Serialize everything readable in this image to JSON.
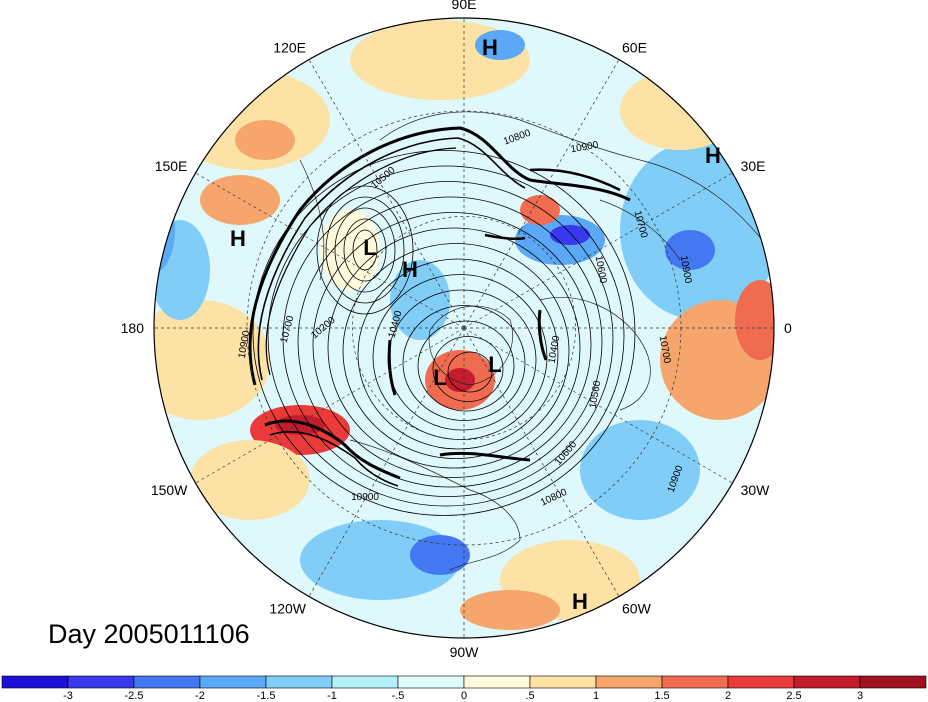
{
  "map": {
    "title": "Day 2005011106",
    "projection": "north-polar-stereographic",
    "longitude_labels": [
      {
        "key": "lon-90e",
        "text": "90E",
        "lon": 90
      },
      {
        "key": "lon-60e",
        "text": "60E",
        "lon": 60
      },
      {
        "key": "lon-30e",
        "text": "30E",
        "lon": 30
      },
      {
        "key": "lon-0",
        "text": "0",
        "lon": 0
      },
      {
        "key": "lon-30w",
        "text": "30W",
        "lon": -30
      },
      {
        "key": "lon-60w",
        "text": "60W",
        "lon": -60
      },
      {
        "key": "lon-90w",
        "text": "90W",
        "lon": -90
      },
      {
        "key": "lon-120w",
        "text": "120W",
        "lon": -120
      },
      {
        "key": "lon-150w",
        "text": "150W",
        "lon": -150
      },
      {
        "key": "lon-180",
        "text": "180",
        "lon": 180
      },
      {
        "key": "lon-150e",
        "text": "150E",
        "lon": 150
      },
      {
        "key": "lon-120e",
        "text": "120E",
        "lon": 120
      }
    ],
    "pressure_centers": [
      {
        "key": "high-north",
        "text": "H",
        "type": "high"
      },
      {
        "key": "high-northeast",
        "text": "H",
        "type": "high"
      },
      {
        "key": "high-west",
        "text": "H",
        "type": "high"
      },
      {
        "key": "high-center-west",
        "text": "H",
        "type": "high"
      },
      {
        "key": "high-southeast",
        "text": "H",
        "type": "high"
      },
      {
        "key": "low-west",
        "text": "L",
        "type": "low"
      },
      {
        "key": "low-pole-left",
        "text": "L",
        "type": "low"
      },
      {
        "key": "low-pole-right",
        "text": "L",
        "type": "low"
      }
    ],
    "contour_labels": [
      {
        "key": "c1",
        "text": "10800"
      },
      {
        "key": "c2",
        "text": "10900"
      },
      {
        "key": "c3",
        "text": "10700"
      },
      {
        "key": "c4",
        "text": "10600"
      },
      {
        "key": "c5",
        "text": "10900"
      },
      {
        "key": "c6",
        "text": "10700"
      },
      {
        "key": "c7",
        "text": "10560"
      },
      {
        "key": "c8",
        "text": "10600"
      },
      {
        "key": "c9",
        "text": "10800"
      },
      {
        "key": "c10",
        "text": "10900"
      },
      {
        "key": "c11",
        "text": "10900"
      },
      {
        "key": "c12",
        "text": "10900"
      },
      {
        "key": "c13",
        "text": "10400"
      },
      {
        "key": "c14",
        "text": "10700"
      },
      {
        "key": "c15",
        "text": "10400"
      },
      {
        "key": "c16",
        "text": "10200"
      },
      {
        "key": "c17",
        "text": "10500"
      }
    ]
  },
  "colorbar": {
    "colors": [
      "#1c10d6",
      "#3838ec",
      "#4478f2",
      "#5aa8f6",
      "#80cef8",
      "#b4f0fa",
      "#e0fcfc",
      "#fffadc",
      "#fce2a4",
      "#f6a66c",
      "#f06c50",
      "#ea3a3a",
      "#c41c2c",
      "#a0101e"
    ],
    "tick_labels": [
      "-3",
      "-2.5",
      "-2",
      "-1.5",
      "-1",
      "-.5",
      "0",
      ".5",
      "1",
      "1.5",
      "2",
      "2.5",
      "3"
    ]
  }
}
